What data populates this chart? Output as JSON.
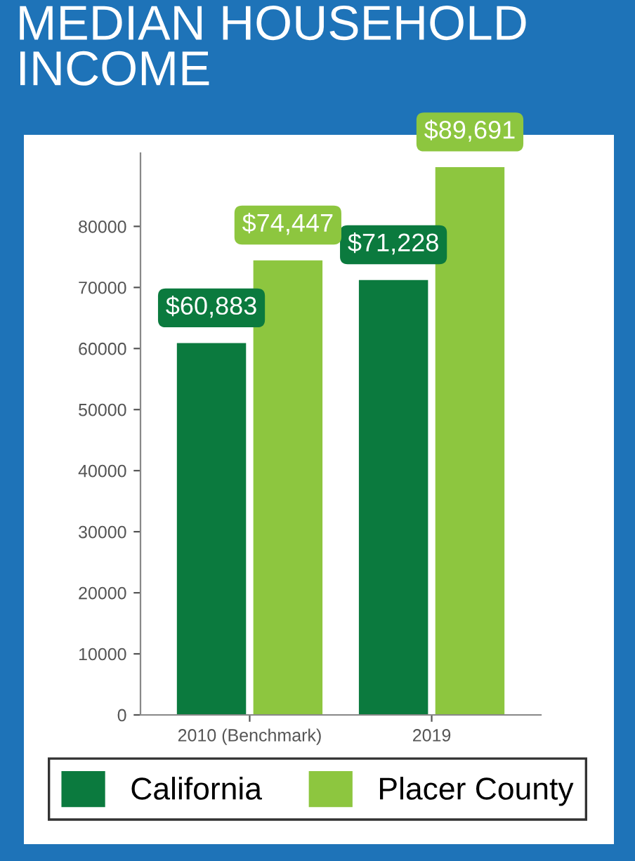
{
  "chart_data": {
    "type": "bar",
    "title": "MEDIAN HOUSEHOLD\nINCOME",
    "categories": [
      "2010 (Benchmark)",
      "2019"
    ],
    "series": [
      {
        "name": "California",
        "color": "#0b7a3e",
        "values": [
          60883,
          71228
        ],
        "value_labels": [
          "$60,883",
          "$71,228"
        ]
      },
      {
        "name": "Placer County",
        "color": "#8dc63f",
        "values": [
          74447,
          89691
        ],
        "value_labels": [
          "$74,447",
          "$89,691"
        ]
      }
    ],
    "ylim": [
      0,
      92000
    ],
    "yticks": [
      0,
      10000,
      20000,
      30000,
      40000,
      50000,
      60000,
      70000,
      80000
    ],
    "grid": false,
    "legend": "bottom"
  }
}
